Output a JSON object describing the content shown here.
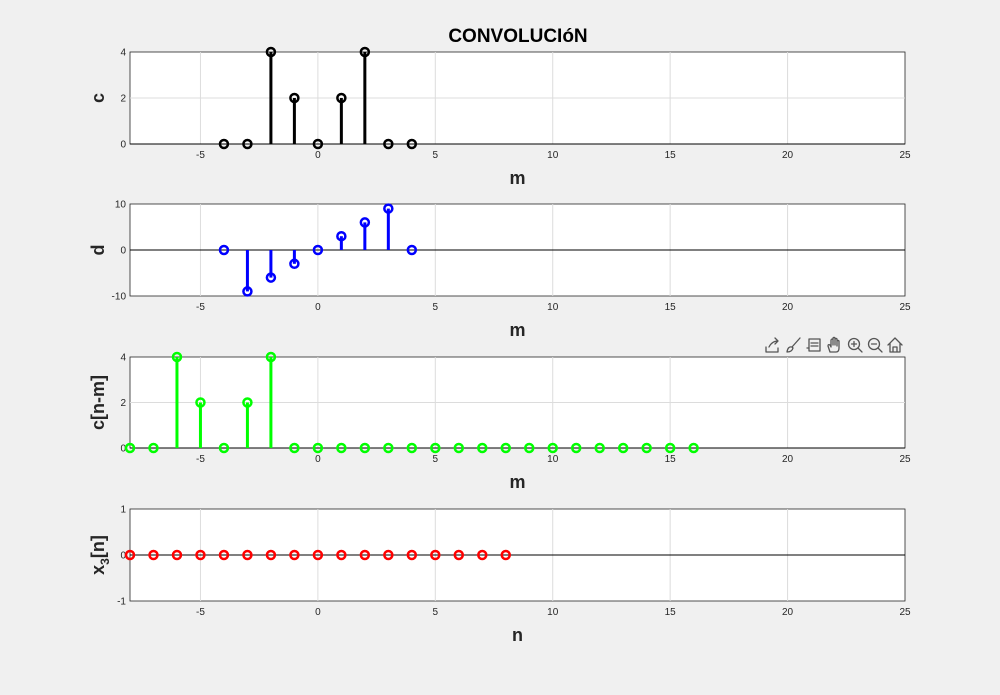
{
  "figure": {
    "title": "CONVOLUCIóN"
  },
  "toolbar": {
    "icons": [
      "export-icon",
      "brush-icon",
      "datatip-icon",
      "pan-hand-icon",
      "zoom-in-icon",
      "zoom-out-icon",
      "home-icon"
    ]
  },
  "chart_data": [
    {
      "type": "stem",
      "xlabel": "m",
      "ylabel": "c",
      "xlim": [
        -8,
        25
      ],
      "ylim": [
        0,
        4
      ],
      "xticks": [
        -5,
        0,
        5,
        10,
        15,
        20,
        25
      ],
      "yticks": [
        0,
        2,
        4
      ],
      "grid": true,
      "color": "#000000",
      "series": [
        {
          "x": [
            -4,
            -3,
            -2,
            -1,
            0,
            1,
            2,
            3,
            4
          ],
          "values": [
            0,
            0,
            4,
            2,
            0,
            2,
            4,
            0,
            0
          ]
        }
      ]
    },
    {
      "type": "stem",
      "xlabel": "m",
      "ylabel": "d",
      "xlim": [
        -8,
        25
      ],
      "ylim": [
        -10,
        10
      ],
      "xticks": [
        -5,
        0,
        5,
        10,
        15,
        20,
        25
      ],
      "yticks": [
        -10,
        0,
        10
      ],
      "grid": true,
      "color": "#0000ff",
      "series": [
        {
          "x": [
            -4,
            -3,
            -2,
            -1,
            0,
            1,
            2,
            3,
            4
          ],
          "values": [
            0,
            -9,
            -6,
            -3,
            0,
            3,
            6,
            9,
            0
          ]
        }
      ]
    },
    {
      "type": "stem",
      "xlabel": "m",
      "ylabel": "c[n-m]",
      "xlim": [
        -8,
        25
      ],
      "ylim": [
        0,
        4
      ],
      "xticks": [
        -5,
        0,
        5,
        10,
        15,
        20,
        25
      ],
      "yticks": [
        0,
        2,
        4
      ],
      "ytick_labels_shown": [
        "2",
        "4"
      ],
      "grid": true,
      "color": "#00ff00",
      "series": [
        {
          "x": [
            -8,
            -7,
            -6,
            -5,
            -4,
            -3,
            -2,
            -1,
            0,
            1,
            2,
            3,
            4,
            5,
            6,
            7,
            8,
            9,
            10,
            11,
            12,
            13,
            14,
            15,
            16
          ],
          "values": [
            0,
            0,
            4,
            2,
            0,
            2,
            4,
            0,
            0,
            0,
            0,
            0,
            0,
            0,
            0,
            0,
            0,
            0,
            0,
            0,
            0,
            0,
            0,
            0,
            0
          ]
        }
      ]
    },
    {
      "type": "stem",
      "xlabel": "n",
      "ylabel_main": "x",
      "ylabel_sub": "3",
      "ylabel_rest": "[n]",
      "xlim": [
        -8,
        25
      ],
      "ylim": [
        -1,
        1
      ],
      "xticks": [
        -5,
        0,
        5,
        10,
        15,
        20,
        25
      ],
      "yticks": [
        -1,
        0,
        1
      ],
      "grid": true,
      "color": "#ff0000",
      "series": [
        {
          "x": [
            -8,
            -7,
            -6,
            -5,
            -4,
            -3,
            -2,
            -1,
            0,
            1,
            2,
            3,
            4,
            5,
            6,
            7,
            8
          ],
          "values": [
            0,
            0,
            0,
            0,
            0,
            0,
            0,
            0,
            0,
            0,
            0,
            0,
            0,
            0,
            0,
            0,
            0
          ]
        }
      ]
    }
  ]
}
